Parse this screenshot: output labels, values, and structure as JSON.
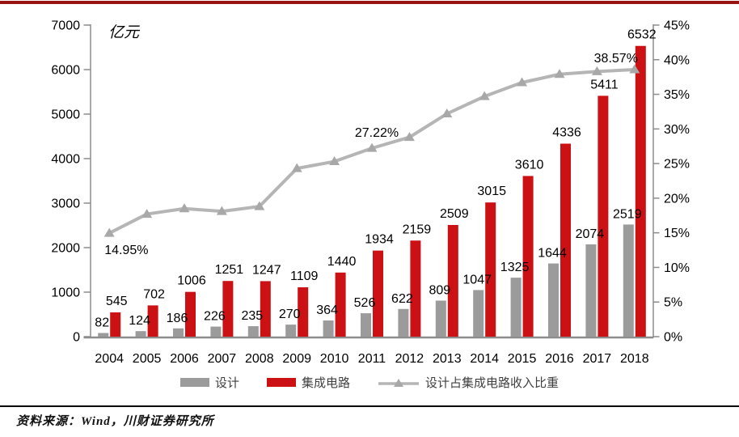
{
  "page": {
    "top_rule_color": "#981412",
    "source_note": "资料来源：Wind，川财证券研究所"
  },
  "chart_data": {
    "type": "bar+line",
    "title": "",
    "unit_label": "亿元",
    "categories": [
      "2004",
      "2005",
      "2006",
      "2007",
      "2008",
      "2009",
      "2010",
      "2011",
      "2012",
      "2013",
      "2014",
      "2015",
      "2016",
      "2017",
      "2018"
    ],
    "bar_series": [
      {
        "name": "设计",
        "color": "#9B9B9B",
        "values": [
          82,
          124,
          186,
          226,
          235,
          270,
          364,
          526,
          622,
          809,
          1047,
          1325,
          1644,
          2074,
          2519
        ]
      },
      {
        "name": "集成电路",
        "color": "#CB1114",
        "values": [
          545,
          702,
          1006,
          1251,
          1247,
          1109,
          1440,
          1934,
          2159,
          2509,
          3015,
          3610,
          4336,
          5411,
          6532
        ]
      }
    ],
    "line_series": {
      "name": "设计占集成电路收入比重",
      "color": "#B5B5B5",
      "marker_color": "#A8A8A8",
      "marker": "triangle",
      "values": [
        14.95,
        17.7,
        18.5,
        18.1,
        18.8,
        24.3,
        25.3,
        27.22,
        28.8,
        32.2,
        34.7,
        36.7,
        37.9,
        38.3,
        38.57
      ]
    },
    "annotations": [
      {
        "index": 0,
        "text": "14.95%",
        "placement": "below"
      },
      {
        "index": 7,
        "text": "27.22%",
        "placement": "above"
      },
      {
        "index": 14,
        "text": "38.57%",
        "placement": "above-left"
      }
    ],
    "left_axis": {
      "min": 0,
      "max": 7000,
      "step": 1000
    },
    "right_axis": {
      "min": 0,
      "max": 45,
      "step": 5,
      "suffix": "%"
    },
    "axis_color": "#8C8C8C",
    "text_color": "#000000",
    "grid": false,
    "legend_position": "bottom"
  }
}
